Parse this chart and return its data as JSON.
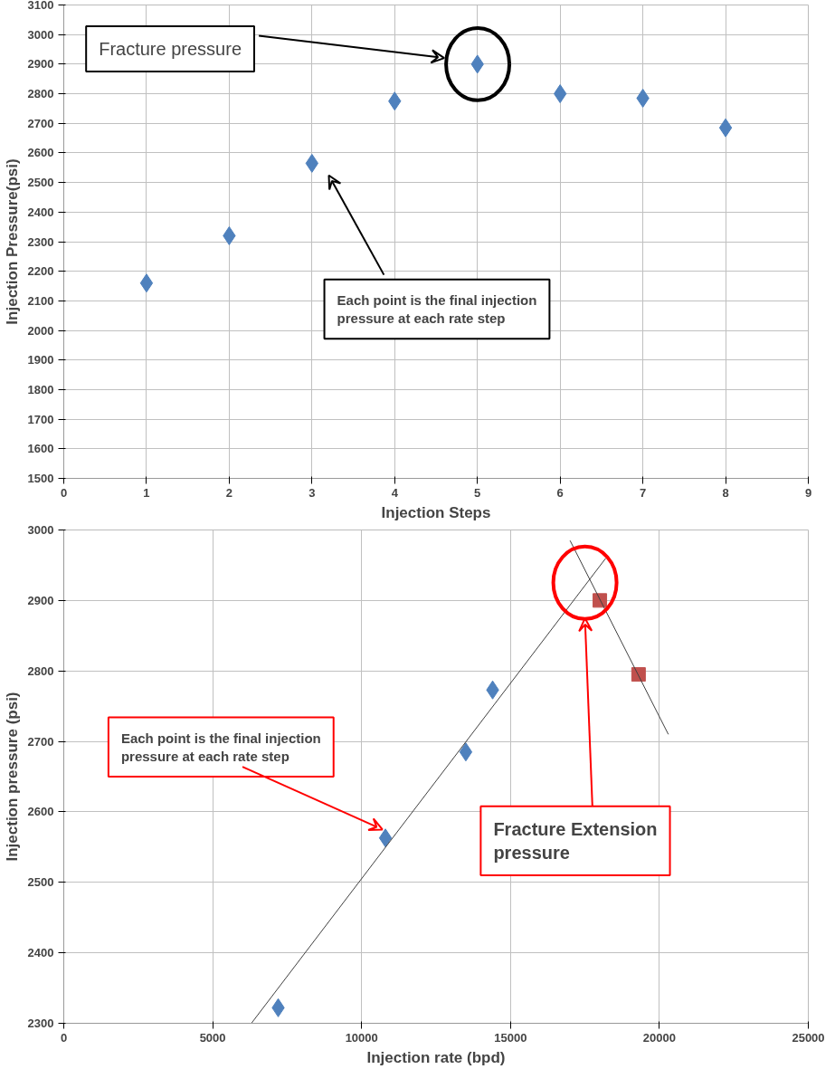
{
  "chart_data": [
    {
      "type": "scatter",
      "xlabel": "Injection Steps",
      "ylabel": "Injection Pressure(psi)",
      "x": [
        1,
        2,
        3,
        4,
        5,
        6,
        7,
        8
      ],
      "series": [
        {
          "color": "#4f81bd",
          "values": [
            2160,
            2320,
            2565,
            2775,
            2900,
            2800,
            2785,
            2685
          ],
          "marker": "diamond"
        }
      ],
      "xlim": [
        0,
        9
      ],
      "xticks": [
        0,
        1,
        2,
        3,
        4,
        5,
        6,
        7,
        8,
        9
      ],
      "ylim": [
        1500,
        3100
      ],
      "yticks": [
        1500,
        1600,
        1700,
        1800,
        1900,
        2000,
        2100,
        2200,
        2300,
        2400,
        2500,
        2600,
        2700,
        2800,
        2900,
        3000,
        3100
      ],
      "grid": true,
      "annotations": [
        "Fracture pressure",
        "Each point is the final injection pressure at each rate step"
      ]
    },
    {
      "type": "scatter",
      "xlabel": "Injection rate (bpd)",
      "ylabel": "Injection pressure (psi)",
      "series": [
        {
          "color": "#4f81bd",
          "x": [
            7200,
            10800,
            13500,
            14400
          ],
          "values": [
            2322,
            2563,
            2685,
            2773
          ],
          "marker": "diamond"
        },
        {
          "color": "#c0504d",
          "x": [
            18000,
            19300
          ],
          "values": [
            2900,
            2795
          ],
          "marker": "square"
        },
        {
          "type": "line",
          "color": "#404040",
          "x": [
            6300,
            18200
          ],
          "values": [
            2300,
            2960
          ]
        },
        {
          "type": "line",
          "color": "#404040",
          "x": [
            17000,
            20300
          ],
          "values": [
            2985,
            2710
          ]
        }
      ],
      "xlim": [
        0,
        25000
      ],
      "xticks": [
        0,
        5000,
        10000,
        15000,
        20000,
        25000
      ],
      "ylim": [
        2300,
        3000
      ],
      "yticks": [
        2300,
        2400,
        2500,
        2600,
        2700,
        2800,
        2900,
        3000
      ],
      "grid": true,
      "annotations": [
        {
          "text": "Each point is the final injection pressure at each rate step",
          "x": 10700,
          "y": 2575
        },
        "Fracture Extension pressure"
      ]
    }
  ]
}
